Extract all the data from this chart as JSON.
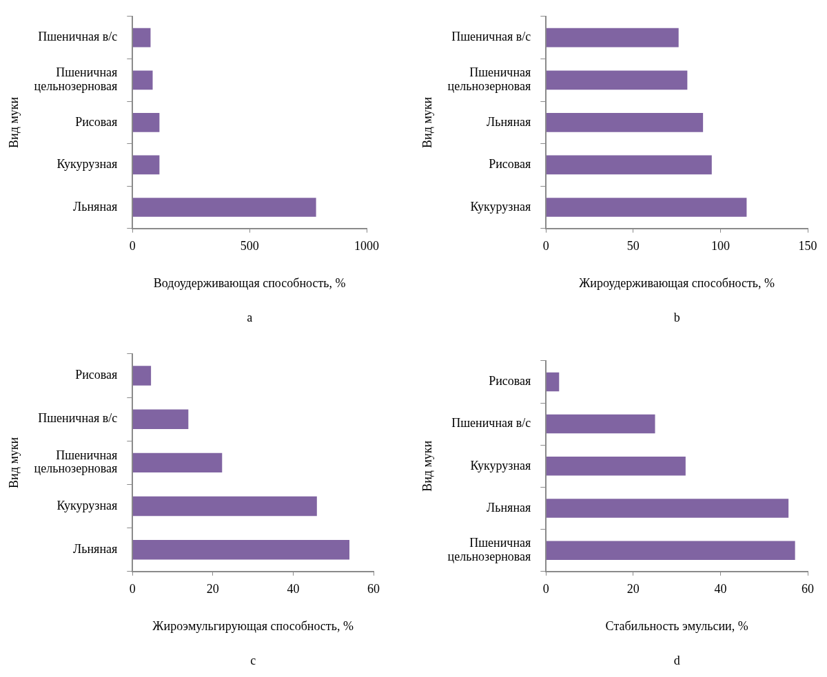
{
  "chart_data": [
    {
      "type": "bar",
      "orientation": "horizontal",
      "categories": [
        "Пшеничная в/с",
        "Пшеничная цельнозерновая",
        "Рисовая",
        "Кукурузная",
        "Льняная"
      ],
      "values": [
        77,
        86,
        115,
        115,
        784
      ],
      "color": "#8064a2",
      "xlim": [
        0,
        1000
      ],
      "xticks": [
        0,
        500,
        1000
      ],
      "xlabel": "Водоудерживающая способность, %",
      "ylabel": "Вид муки",
      "annotations": [
        "a"
      ],
      "grid": false
    },
    {
      "type": "bar",
      "orientation": "horizontal",
      "categories": [
        "Пшеничная в/с",
        "Пшеничная цельнозерновая",
        "Льняная",
        "Рисовая",
        "Кукурузная"
      ],
      "values": [
        76,
        81,
        90,
        95,
        115
      ],
      "color": "#8064a2",
      "xlim": [
        0,
        150
      ],
      "xticks": [
        0,
        50,
        100,
        150
      ],
      "xlabel": "Жироудерживающая способность, %",
      "ylabel": "Вид муки",
      "annotations": [
        "b"
      ],
      "grid": false
    },
    {
      "type": "bar",
      "orientation": "horizontal",
      "categories": [
        "Рисовая",
        "Пшеничная в/с",
        "Пшеничная цельнозерновая",
        "Кукурузная",
        "Льняная"
      ],
      "values": [
        4.6,
        13.9,
        22.3,
        45.9,
        54
      ],
      "color": "#8064a2",
      "xlim": [
        0,
        60
      ],
      "xticks": [
        0,
        20,
        40,
        60
      ],
      "xlabel": "Жироэмульгирующая способность, %",
      "ylabel": "Вид муки",
      "annotations": [
        "c"
      ],
      "grid": false
    },
    {
      "type": "bar",
      "orientation": "horizontal",
      "categories": [
        "Рисовая",
        "Пшеничная в/с",
        "Кукурузная",
        "Льняная",
        "Пшеничная цельнозерновая"
      ],
      "values": [
        3,
        25,
        32,
        55.6,
        57.1
      ],
      "color": "#8064a2",
      "xlim": [
        0,
        60
      ],
      "xticks": [
        0,
        20,
        40,
        60
      ],
      "xlabel": "Стабильность эмульсии, %",
      "ylabel": "Вид муки",
      "annotations": [
        "d"
      ],
      "grid": false
    }
  ]
}
